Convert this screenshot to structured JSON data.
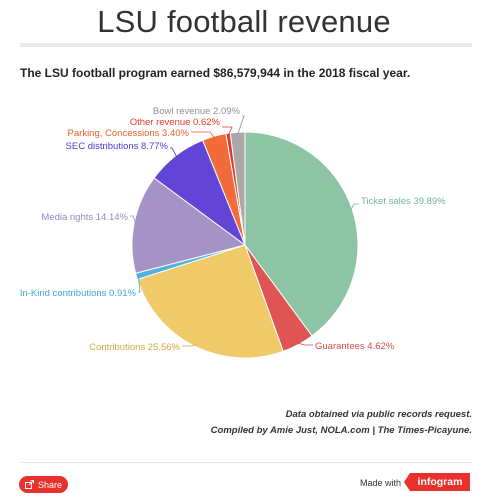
{
  "header": {
    "title": "LSU football revenue",
    "subtitle": "The LSU football program earned $86,579,944 in the 2018 fiscal year."
  },
  "notes": {
    "line1": "Data obtained via public records request.",
    "line2": "Compiled by Amie Just, NOLA.com | The Times-Picayune."
  },
  "footer": {
    "share_label": "Share",
    "made_with": "Made with",
    "brand": "infogram"
  },
  "chart_data": {
    "type": "pie",
    "title": "LSU football revenue",
    "start_angle_deg": 0,
    "direction": "clockwise",
    "slices": [
      {
        "label": "Ticket sales",
        "value": 39.89,
        "display": "Ticket sales 39.89%",
        "color": "#8cc4a4",
        "label_color": "#74b594"
      },
      {
        "label": "Guarantees",
        "value": 4.62,
        "display": "Guarantees 4.62%",
        "color": "#e05454",
        "label_color": "#d94a4a"
      },
      {
        "label": "Contributions",
        "value": 25.56,
        "display": "Contributions 25.56%",
        "color": "#f0ca68",
        "label_color": "#d6a93a"
      },
      {
        "label": "In-Kind contributions",
        "value": 0.91,
        "display": "In-Kind contributions 0.91%",
        "color": "#4fb3de",
        "label_color": "#3fa6d6"
      },
      {
        "label": "Media rights",
        "value": 14.14,
        "display": "Media rights 14.14%",
        "color": "#a593c6",
        "label_color": "#9a86c0"
      },
      {
        "label": "SEC distributions",
        "value": 8.77,
        "display": "SEC distributions 8.77%",
        "color": "#6244d6",
        "label_color": "#5438d0"
      },
      {
        "label": "Parking, Concessions",
        "value": 3.4,
        "display": "Parking, Concessions 3.40%",
        "color": "#f26b3a",
        "label_color": "#ee5e2b"
      },
      {
        "label": "Other revenue",
        "value": 0.62,
        "display": "Other revenue 0.62%",
        "color": "#e03a2e",
        "label_color": "#e03a2e"
      },
      {
        "label": "Bowl revenue",
        "value": 2.09,
        "display": "Bowl revenue 2.09%",
        "color": "#a9a9a9",
        "label_color": "#8f8f8f"
      }
    ]
  }
}
